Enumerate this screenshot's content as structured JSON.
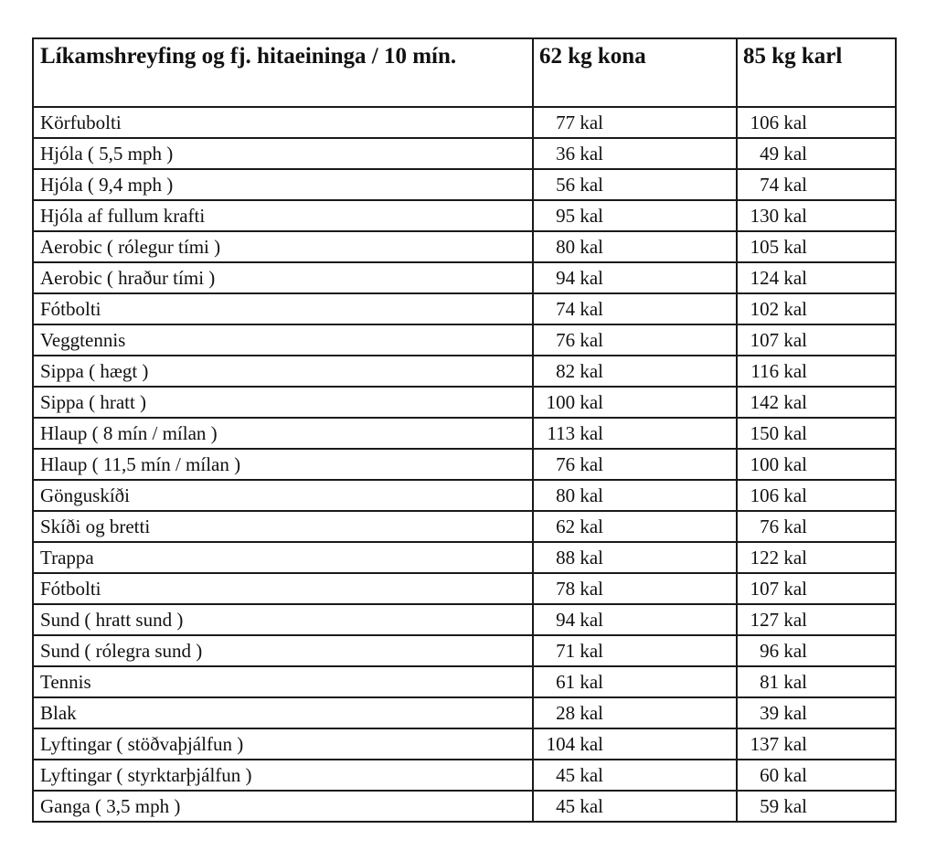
{
  "table": {
    "headers": [
      "Líkamshreyfing og fj. hitaeininga / 10 mín.",
      "62 kg kona",
      "85 kg karl"
    ],
    "rows": [
      [
        "Körfubolti",
        "77 kal",
        "106 kal"
      ],
      [
        "Hjóla ( 5,5 mph )",
        "36 kal",
        "49 kal"
      ],
      [
        "Hjóla ( 9,4 mph )",
        "56 kal",
        "74 kal"
      ],
      [
        "Hjóla af fullum krafti",
        "95 kal",
        "130 kal"
      ],
      [
        "Aerobic ( rólegur tími )",
        "80 kal",
        "105 kal"
      ],
      [
        "Aerobic ( hraður tími )",
        "94 kal",
        "124 kal"
      ],
      [
        "Fótbolti",
        "74 kal",
        "102 kal"
      ],
      [
        "Veggtennis",
        "76 kal",
        "107 kal"
      ],
      [
        "Sippa ( hægt )",
        "82 kal",
        "116 kal"
      ],
      [
        "Sippa ( hratt )",
        "100 kal",
        "142 kal"
      ],
      [
        "Hlaup ( 8 mín / mílan )",
        "113 kal",
        "150 kal"
      ],
      [
        "Hlaup ( 11,5 mín / mílan )",
        "76 kal",
        "100 kal"
      ],
      [
        "Gönguskíði",
        "80 kal",
        "106 kal"
      ],
      [
        "Skíði og bretti",
        "62 kal",
        "76 kal"
      ],
      [
        "Trappa",
        "88 kal",
        "122 kal"
      ],
      [
        "Fótbolti",
        "78 kal",
        "107 kal"
      ],
      [
        "Sund ( hratt sund )",
        "94 kal",
        "127 kal"
      ],
      [
        "Sund ( rólegra sund )",
        "71 kal",
        "96 kal"
      ],
      [
        "Tennis",
        "61 kal",
        "81 kal"
      ],
      [
        "Blak",
        "28 kal",
        "39 kal"
      ],
      [
        "Lyftingar ( stöðvaþjálfun )",
        "104 kal",
        "137 kal"
      ],
      [
        "Lyftingar ( styrktarþjálfun )",
        "45 kal",
        "60 kal"
      ],
      [
        "Ganga ( 3,5 mph )",
        "45 kal",
        "59 kal"
      ]
    ]
  }
}
